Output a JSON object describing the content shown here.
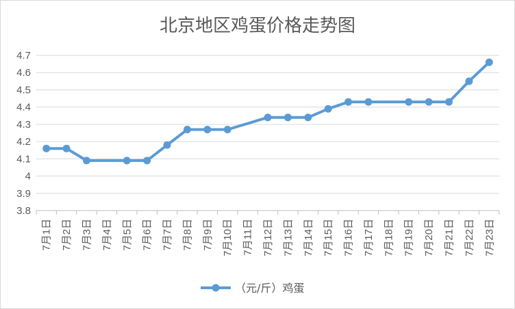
{
  "chart_data": {
    "type": "line",
    "title": "北京地区鸡蛋价格走势图",
    "categories": [
      "7月1日",
      "7月2日",
      "7月3日",
      "7月4日",
      "7月5日",
      "7月6日",
      "7月7日",
      "7月8日",
      "7月9日",
      "7月10日",
      "7月11日",
      "7月12日",
      "7月13日",
      "7月14日",
      "7月15日",
      "7月16日",
      "7月17日",
      "7月18日",
      "7月19日",
      "7月20日",
      "7月21日",
      "7月22日",
      "7月23日"
    ],
    "series": [
      {
        "name": "（元/斤）鸡蛋",
        "color": "#5B9BD5",
        "values": [
          4.16,
          4.16,
          4.09,
          null,
          4.09,
          4.09,
          4.18,
          4.27,
          4.27,
          4.27,
          null,
          4.34,
          4.34,
          4.34,
          4.39,
          4.43,
          4.43,
          null,
          4.43,
          4.43,
          4.43,
          4.55,
          4.66
        ]
      }
    ],
    "yticks": [
      "3.8",
      "3.9",
      "4",
      "4.1",
      "4.2",
      "4.3",
      "4.4",
      "4.5",
      "4.6",
      "4.7"
    ],
    "ylim": [
      3.8,
      4.7
    ],
    "grid": true,
    "legend": "bottom"
  }
}
